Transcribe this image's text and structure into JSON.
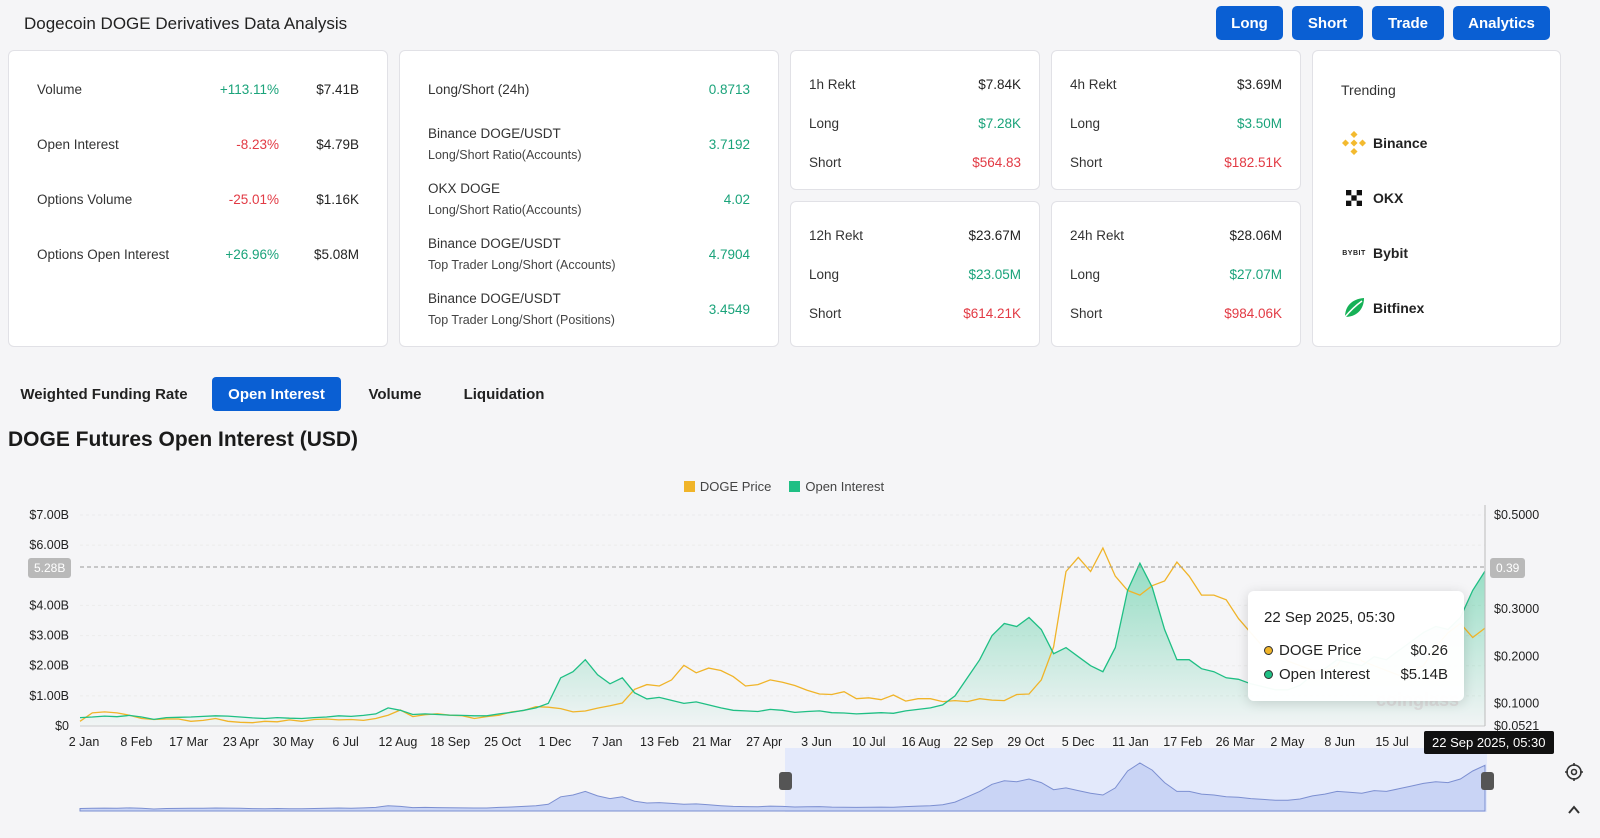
{
  "header": {
    "title": "Dogecoin DOGE Derivatives Data Analysis",
    "buttons": [
      "Long",
      "Short",
      "Trade",
      "Analytics"
    ]
  },
  "stats": [
    {
      "label": "Volume",
      "change": "+113.11%",
      "value": "$7.41B",
      "dir": "up"
    },
    {
      "label": "Open Interest",
      "change": "-8.23%",
      "value": "$4.79B",
      "dir": "down"
    },
    {
      "label": "Options Volume",
      "change": "-25.01%",
      "value": "$1.16K",
      "dir": "down"
    },
    {
      "label": "Options Open Interest",
      "change": "+26.96%",
      "value": "$5.08M",
      "dir": "up"
    }
  ],
  "ratios": [
    {
      "label": "Long/Short (24h)",
      "sub": "",
      "value": "0.8713"
    },
    {
      "label": "Binance DOGE/USDT",
      "sub": "Long/Short Ratio(Accounts)",
      "value": "3.7192"
    },
    {
      "label": "OKX DOGE",
      "sub": "Long/Short Ratio(Accounts)",
      "value": "4.02"
    },
    {
      "label": "Binance DOGE/USDT",
      "sub": "Top Trader Long/Short (Accounts)",
      "value": "4.7904"
    },
    {
      "label": "Binance DOGE/USDT",
      "sub": "Top Trader Long/Short (Positions)",
      "value": "3.4549"
    }
  ],
  "rekt": [
    {
      "title": "1h Rekt",
      "total": "$7.84K",
      "long_label": "Long",
      "long": "$7.28K",
      "short_label": "Short",
      "short": "$564.83"
    },
    {
      "title": "4h Rekt",
      "total": "$3.69M",
      "long_label": "Long",
      "long": "$3.50M",
      "short_label": "Short",
      "short": "$182.51K"
    },
    {
      "title": "12h Rekt",
      "total": "$23.67M",
      "long_label": "Long",
      "long": "$23.05M",
      "short_label": "Short",
      "short": "$614.21K"
    },
    {
      "title": "24h Rekt",
      "total": "$28.06M",
      "long_label": "Long",
      "long": "$27.07M",
      "short_label": "Short",
      "short": "$984.06K"
    }
  ],
  "trending": {
    "title": "Trending",
    "items": [
      {
        "name": "Binance",
        "icon": "binance-logo-icon"
      },
      {
        "name": "OKX",
        "icon": "okx-logo-icon"
      },
      {
        "name": "Bybit",
        "icon": "bybit-logo-icon",
        "logo_text": "BYBIT"
      },
      {
        "name": "Bitfinex",
        "icon": "bitfinex-logo-icon"
      }
    ]
  },
  "tabs": [
    {
      "label": "Weighted Funding Rate",
      "active": false
    },
    {
      "label": "Open Interest",
      "active": true
    },
    {
      "label": "Volume",
      "active": false
    },
    {
      "label": "Liquidation",
      "active": false
    }
  ],
  "chart_title": "DOGE Futures Open Interest (USD)",
  "tooltip": {
    "date": "22 Sep 2025, 05:30",
    "rows": [
      {
        "name": "DOGE Price",
        "value": "$0.26"
      },
      {
        "name": "Open Interest",
        "value": "$5.14B"
      }
    ]
  },
  "crosshair": {
    "left_value": "5.28B",
    "right_value": "0.39",
    "date": "22 Sep 2025, 05:30"
  },
  "watermark": "coinglass",
  "colors": {
    "accent": "#0a5fd3",
    "price": "#f0b429",
    "open_interest": "#1fbf84",
    "up": "#1aa37a",
    "down": "#e23a44"
  },
  "chart_data": {
    "type": "line",
    "series": [
      {
        "name": "DOGE Price",
        "axis": "right",
        "color": "#f0b429",
        "values": [
          0.062,
          0.08,
          0.082,
          0.08,
          0.075,
          0.068,
          0.066,
          0.067,
          0.067,
          0.062,
          0.064,
          0.068,
          0.062,
          0.06,
          0.059,
          0.062,
          0.061,
          0.065,
          0.062,
          0.066,
          0.067,
          0.065,
          0.066,
          0.064,
          0.068,
          0.075,
          0.086,
          0.072,
          0.076,
          0.078,
          0.075,
          0.074,
          0.068,
          0.072,
          0.075,
          0.082,
          0.085,
          0.093,
          0.092,
          0.089,
          0.082,
          0.084,
          0.09,
          0.095,
          0.101,
          0.13,
          0.14,
          0.137,
          0.15,
          0.181,
          0.165,
          0.175,
          0.17,
          0.157,
          0.137,
          0.14,
          0.15,
          0.145,
          0.138,
          0.128,
          0.12,
          0.119,
          0.125,
          0.11,
          0.112,
          0.108,
          0.118,
          0.105,
          0.11,
          0.11,
          0.104,
          0.106,
          0.104,
          0.11,
          0.107,
          0.106,
          0.119,
          0.12,
          0.15,
          0.22,
          0.38,
          0.41,
          0.38,
          0.43,
          0.37,
          0.34,
          0.33,
          0.35,
          0.36,
          0.4,
          0.37,
          0.33,
          0.33,
          0.32,
          0.28,
          0.25,
          0.22,
          0.21,
          0.19,
          0.18,
          0.17,
          0.17,
          0.18,
          0.22,
          0.19,
          0.18,
          0.17,
          0.16,
          0.17,
          0.18,
          0.22,
          0.25,
          0.27,
          0.24,
          0.26
        ]
      },
      {
        "name": "Open Interest",
        "axis": "left",
        "color": "#1fbf84",
        "values": [
          0.28,
          0.3,
          0.33,
          0.31,
          0.35,
          0.3,
          0.22,
          0.28,
          0.29,
          0.3,
          0.32,
          0.34,
          0.33,
          0.3,
          0.27,
          0.25,
          0.28,
          0.26,
          0.25,
          0.28,
          0.3,
          0.34,
          0.32,
          0.35,
          0.4,
          0.6,
          0.52,
          0.38,
          0.4,
          0.38,
          0.36,
          0.35,
          0.34,
          0.34,
          0.4,
          0.45,
          0.52,
          0.6,
          0.75,
          1.6,
          1.8,
          2.2,
          1.7,
          1.4,
          1.6,
          1.1,
          0.9,
          0.95,
          0.85,
          0.75,
          0.8,
          0.7,
          0.6,
          0.52,
          0.5,
          0.48,
          0.55,
          0.52,
          0.45,
          0.48,
          0.5,
          0.44,
          0.43,
          0.4,
          0.42,
          0.44,
          0.42,
          0.5,
          0.55,
          0.6,
          0.7,
          1.0,
          1.6,
          2.2,
          3.0,
          3.4,
          3.3,
          3.6,
          3.2,
          2.4,
          2.6,
          2.3,
          2.0,
          1.8,
          2.6,
          4.5,
          5.4,
          4.6,
          3.2,
          2.2,
          2.2,
          1.9,
          1.8,
          1.6,
          1.55,
          1.4,
          1.3,
          1.2,
          1.2,
          1.35,
          1.7,
          1.9,
          2.2,
          2.1,
          2.0,
          2.3,
          2.2,
          2.5,
          2.8,
          3.1,
          3.3,
          3.2,
          3.6,
          4.5,
          5.14
        ]
      }
    ],
    "x_ticks": [
      "2 Jan",
      "8 Feb",
      "17 Mar",
      "23 Apr",
      "30 May",
      "6 Jul",
      "12 Aug",
      "18 Sep",
      "25 Oct",
      "1 Dec",
      "7 Jan",
      "13 Feb",
      "21 Mar",
      "27 Apr",
      "3 Jun",
      "10 Jul",
      "16 Aug",
      "22 Sep",
      "29 Oct",
      "5 Dec",
      "11 Jan",
      "17 Feb",
      "26 Mar",
      "2 May",
      "8 Jun",
      "15 Jul"
    ],
    "y_left_ticks": [
      "$0",
      "$1.00B",
      "$2.00B",
      "$3.00B",
      "$4.00B",
      "$6.00B",
      "$7.00B"
    ],
    "y_left_values": [
      0,
      1,
      2,
      3,
      4,
      6,
      7
    ],
    "y_left_range": [
      0,
      7
    ],
    "y_right_ticks": [
      "$0.0521",
      "$0.1000",
      "$0.2000",
      "$0.3000",
      "$0.5000"
    ],
    "y_right_values": [
      0.0521,
      0.1,
      0.2,
      0.3,
      0.5
    ],
    "y_right_range": [
      0.0521,
      0.5
    ],
    "legend": [
      "DOGE Price",
      "Open Interest"
    ],
    "legend_placement": "top-center",
    "grid": true
  }
}
